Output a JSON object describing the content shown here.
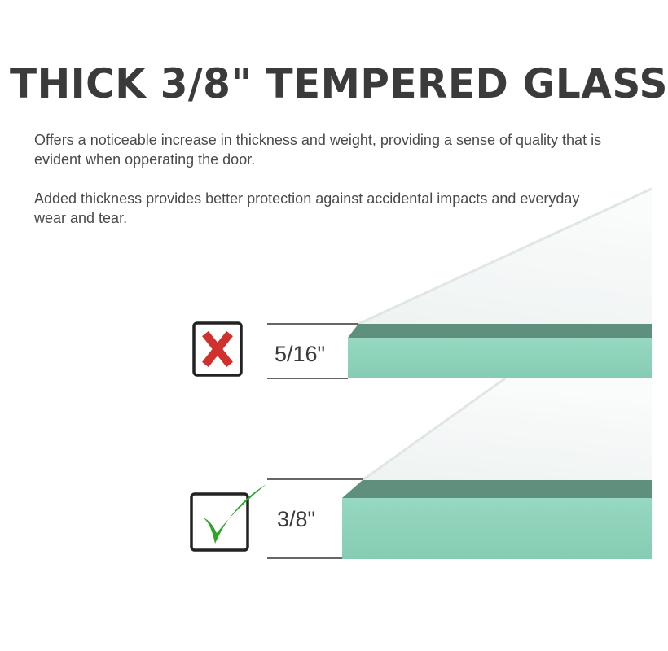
{
  "title": "THICK 3/8\" TEMPERED GLASS",
  "paragraphs": [
    "Offers a noticeable increase in thickness and weight, providing a sense of quality that is evident when opperating the door.",
    "Added thickness provides better protection against accidental impacts and everyday wear and tear."
  ],
  "comparison": [
    {
      "label": "5/16\"",
      "status": "rejected",
      "icon": "red-x-icon",
      "color": "#d0312d"
    },
    {
      "label": "3/8\"",
      "status": "approved",
      "icon": "green-checkmark-icon",
      "color": "#2ea52a"
    }
  ],
  "colors": {
    "glass_edge": "#92d5bd",
    "glass_edge_dark": "#5e8e7c",
    "title": "#3b3b3b"
  }
}
